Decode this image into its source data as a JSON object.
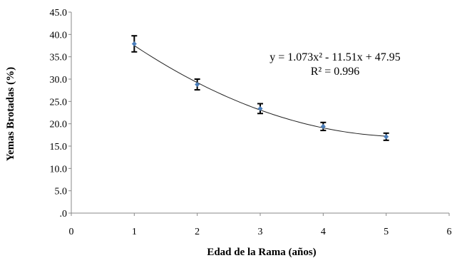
{
  "chart_data": {
    "type": "scatter",
    "title": "",
    "xlabel": "Edad de la Rama (años)",
    "ylabel": "Yemas Brotadas (%)",
    "xlim": [
      0,
      6
    ],
    "ylim": [
      0,
      45
    ],
    "x_ticks": [
      0,
      1,
      2,
      3,
      4,
      5,
      6
    ],
    "x_tick_labels": [
      "0",
      "1",
      "2",
      "3",
      "4",
      "5",
      "6"
    ],
    "y_ticks": [
      0,
      5,
      10,
      15,
      20,
      25,
      30,
      35,
      40,
      45
    ],
    "y_tick_labels": [
      ".0",
      "5.0",
      "10.0",
      "15.0",
      "20.0",
      "25.0",
      "30.0",
      "35.0",
      "40.0",
      "45.0"
    ],
    "grid": false,
    "series": [
      {
        "x": [
          1,
          2,
          3,
          4,
          5
        ],
        "y": [
          37.9,
          28.8,
          23.4,
          19.4,
          17.1
        ],
        "error": [
          1.8,
          1.2,
          1.1,
          0.9,
          0.8
        ],
        "color": "#4a7ebb"
      }
    ],
    "trendline": {
      "type": "polynomial",
      "coefficients": [
        1.073,
        -11.51,
        47.95
      ],
      "x_range": [
        1,
        5
      ],
      "equation": "y = 1.073x² - 11.51x + 47.95",
      "r2": "R² = 0.996"
    }
  }
}
